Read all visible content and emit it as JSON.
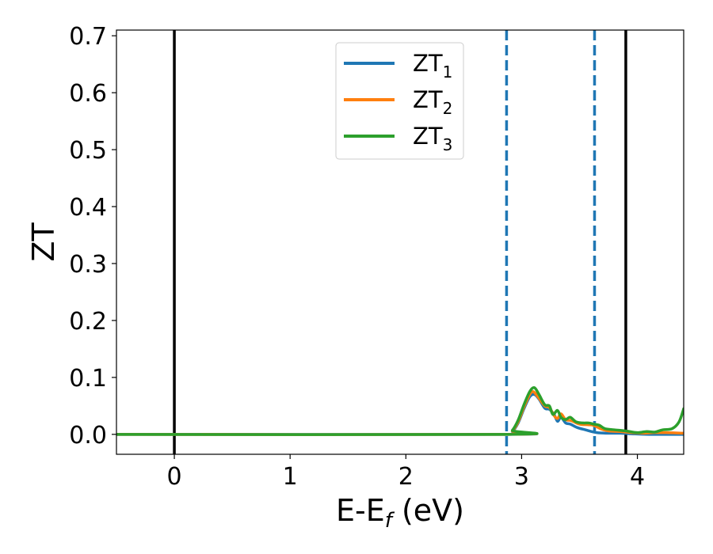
{
  "chart_data": {
    "type": "line",
    "title": "",
    "xlabel": {
      "main": "E-E",
      "sub": "f",
      "suffix": " (eV)"
    },
    "ylabel": "ZT",
    "xlim": [
      -0.5,
      4.4
    ],
    "ylim": [
      -0.035,
      0.71
    ],
    "xticks": [
      0,
      1,
      2,
      3,
      4
    ],
    "xtick_labels": [
      "0",
      "1",
      "2",
      "3",
      "4"
    ],
    "yticks": [
      0.0,
      0.1,
      0.2,
      0.3,
      0.4,
      0.5,
      0.6,
      0.7
    ],
    "ytick_labels": [
      "0.0",
      "0.1",
      "0.2",
      "0.3",
      "0.4",
      "0.5",
      "0.6",
      "0.7"
    ],
    "grid": false,
    "legend_position": "top-center",
    "vertical_lines": [
      {
        "x": 0.0,
        "style": "solid",
        "color": "#000000"
      },
      {
        "x": 2.87,
        "style": "dashed",
        "color": "#1f77b4"
      },
      {
        "x": 3.63,
        "style": "dashed",
        "color": "#1f77b4"
      },
      {
        "x": 3.9,
        "style": "solid",
        "color": "#000000"
      }
    ],
    "series": [
      {
        "name": "ZT",
        "name_sub": "1",
        "color": "#1f77b4",
        "points": [
          [
            -0.5,
            0.0
          ],
          [
            2.87,
            0.0
          ],
          [
            2.92,
            0.005
          ],
          [
            2.97,
            0.02
          ],
          [
            3.02,
            0.045
          ],
          [
            3.07,
            0.066
          ],
          [
            3.11,
            0.07
          ],
          [
            3.15,
            0.062
          ],
          [
            3.2,
            0.046
          ],
          [
            3.24,
            0.044
          ],
          [
            3.28,
            0.035
          ],
          [
            3.31,
            0.023
          ],
          [
            3.34,
            0.03
          ],
          [
            3.38,
            0.02
          ],
          [
            3.42,
            0.018
          ],
          [
            3.48,
            0.012
          ],
          [
            3.55,
            0.008
          ],
          [
            3.65,
            0.003
          ],
          [
            3.75,
            0.002
          ],
          [
            3.85,
            0.002
          ],
          [
            3.95,
            0.001
          ],
          [
            4.1,
            0.0
          ],
          [
            4.4,
            0.0
          ]
        ]
      },
      {
        "name": "ZT",
        "name_sub": "2",
        "color": "#ff7f0e",
        "points": [
          [
            -0.5,
            0.0
          ],
          [
            2.87,
            0.0
          ],
          [
            2.92,
            0.006
          ],
          [
            2.97,
            0.022
          ],
          [
            3.02,
            0.048
          ],
          [
            3.07,
            0.07
          ],
          [
            3.1,
            0.075
          ],
          [
            3.14,
            0.066
          ],
          [
            3.2,
            0.05
          ],
          [
            3.24,
            0.047
          ],
          [
            3.28,
            0.033
          ],
          [
            3.31,
            0.028
          ],
          [
            3.34,
            0.036
          ],
          [
            3.38,
            0.026
          ],
          [
            3.43,
            0.024
          ],
          [
            3.5,
            0.018
          ],
          [
            3.57,
            0.017
          ],
          [
            3.62,
            0.016
          ],
          [
            3.68,
            0.01
          ],
          [
            3.75,
            0.006
          ],
          [
            3.85,
            0.005
          ],
          [
            3.95,
            0.003
          ],
          [
            4.05,
            0.002
          ],
          [
            4.15,
            0.003
          ],
          [
            4.25,
            0.003
          ],
          [
            4.4,
            0.002
          ]
        ]
      },
      {
        "name": "ZT",
        "name_sub": "3",
        "color": "#2ca02c",
        "points": [
          [
            -0.5,
            0.0
          ],
          [
            2.87,
            0.0
          ],
          [
            2.92,
            0.007
          ],
          [
            2.97,
            0.025
          ],
          [
            3.02,
            0.052
          ],
          [
            3.07,
            0.075
          ],
          [
            3.11,
            0.082
          ],
          [
            3.15,
            0.07
          ],
          [
            3.2,
            0.052
          ],
          [
            3.24,
            0.05
          ],
          [
            3.27,
            0.035
          ],
          [
            3.31,
            0.042
          ],
          [
            3.34,
            0.03
          ],
          [
            3.38,
            0.026
          ],
          [
            3.42,
            0.03
          ],
          [
            3.47,
            0.022
          ],
          [
            3.53,
            0.02
          ],
          [
            3.58,
            0.02
          ],
          [
            3.62,
            0.018
          ],
          [
            3.67,
            0.016
          ],
          [
            3.72,
            0.01
          ],
          [
            3.8,
            0.008
          ],
          [
            3.9,
            0.006
          ],
          [
            4.0,
            0.003
          ],
          [
            4.08,
            0.005
          ],
          [
            4.15,
            0.004
          ],
          [
            4.22,
            0.008
          ],
          [
            4.3,
            0.01
          ],
          [
            4.36,
            0.022
          ],
          [
            4.4,
            0.045
          ]
        ]
      }
    ]
  }
}
